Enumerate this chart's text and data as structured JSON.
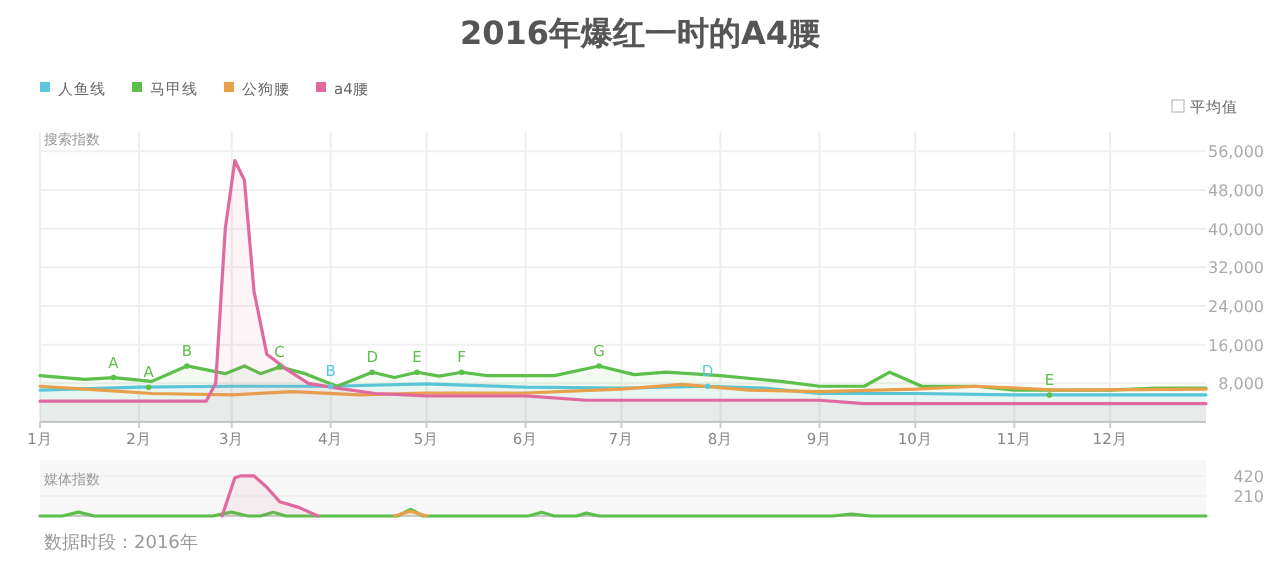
{
  "chart_data": [
    {
      "type": "area",
      "title": "2016年爆红一时的A4腰",
      "ylabel": "搜索指数",
      "legend": "top left",
      "grid": true,
      "xlim": [
        "2016-01-01",
        "2016-12-31"
      ],
      "xticks": [
        {
          "value": "2016-01-01",
          "label": "1月"
        },
        {
          "value": "2016-02-01",
          "label": "2月"
        },
        {
          "value": "2016-03-01",
          "label": "3月"
        },
        {
          "value": "2016-04-01",
          "label": "4月"
        },
        {
          "value": "2016-05-01",
          "label": "5月"
        },
        {
          "value": "2016-06-01",
          "label": "6月"
        },
        {
          "value": "2016-07-01",
          "label": "7月"
        },
        {
          "value": "2016-08-01",
          "label": "8月"
        },
        {
          "value": "2016-09-01",
          "label": "9月"
        },
        {
          "value": "2016-10-01",
          "label": "10月"
        },
        {
          "value": "2016-11-01",
          "label": "11月"
        },
        {
          "value": "2016-12-01",
          "label": "12月"
        }
      ],
      "ylim": [
        0,
        60000
      ],
      "yticks": [
        {
          "value": 8000,
          "label": "8,000"
        },
        {
          "value": 16000,
          "label": "16,000"
        },
        {
          "value": 24000,
          "label": "24,000"
        },
        {
          "value": 32000,
          "label": "32,000"
        },
        {
          "value": 40000,
          "label": "40,000"
        },
        {
          "value": 48000,
          "label": "48,000"
        },
        {
          "value": 56000,
          "label": "56,000"
        }
      ],
      "series": [
        {
          "name": "人鱼线",
          "color": "#5bc8e0",
          "x": [
            "2016-01-01",
            "2016-02-01",
            "2016-03-01",
            "2016-04-01",
            "2016-05-01",
            "2016-06-01",
            "2016-07-01",
            "2016-07-28",
            "2016-08-15",
            "2016-09-01",
            "2016-10-01",
            "2016-11-01",
            "2016-12-31"
          ],
          "values": [
            6600,
            7200,
            7400,
            7400,
            7900,
            7200,
            7000,
            7400,
            7000,
            5900,
            5900,
            5600,
            5600
          ]
        },
        {
          "name": "马甲线",
          "color": "#5cbf4a",
          "x": [
            "2016-01-01",
            "2016-01-15",
            "2016-01-24",
            "2016-02-05",
            "2016-02-16",
            "2016-02-28",
            "2016-03-05",
            "2016-03-10",
            "2016-03-16",
            "2016-03-24",
            "2016-04-03",
            "2016-04-14",
            "2016-04-21",
            "2016-04-28",
            "2016-05-05",
            "2016-05-12",
            "2016-05-20",
            "2016-06-10",
            "2016-06-24",
            "2016-07-05",
            "2016-07-15",
            "2016-08-01",
            "2016-08-20",
            "2016-09-01",
            "2016-09-15",
            "2016-09-23",
            "2016-10-03",
            "2016-10-20",
            "2016-11-01",
            "2016-12-01",
            "2016-12-15",
            "2016-12-31"
          ],
          "values": [
            9600,
            8800,
            9200,
            8400,
            11600,
            10000,
            11600,
            10000,
            11400,
            10000,
            7400,
            10300,
            9200,
            10300,
            9500,
            10300,
            9600,
            9600,
            11600,
            9800,
            10300,
            9600,
            8400,
            7400,
            7400,
            10300,
            7400,
            7400,
            6600,
            6600,
            7000,
            7000
          ]
        },
        {
          "name": "公狗腰",
          "type": "line",
          "color": "#e8a04a",
          "x": [
            "2016-01-01",
            "2016-01-20",
            "2016-02-05",
            "2016-03-01",
            "2016-03-20",
            "2016-04-10",
            "2016-05-01",
            "2016-06-01",
            "2016-07-01",
            "2016-07-20",
            "2016-08-10",
            "2016-09-01",
            "2016-10-01",
            "2016-10-20",
            "2016-11-15",
            "2016-12-31"
          ],
          "values": [
            7400,
            6600,
            5900,
            5600,
            6300,
            5600,
            6000,
            6000,
            6800,
            7800,
            6600,
            6300,
            6800,
            7400,
            6600,
            6800
          ]
        },
        {
          "name": "a4腰",
          "color": "#e06aa0",
          "x": [
            "2016-01-01",
            "2016-02-22",
            "2016-02-25",
            "2016-02-28",
            "2016-03-02",
            "2016-03-05",
            "2016-03-08",
            "2016-03-12",
            "2016-03-18",
            "2016-03-25",
            "2016-04-03",
            "2016-04-15",
            "2016-05-01",
            "2016-06-01",
            "2016-06-20",
            "2016-09-01",
            "2016-09-15",
            "2016-12-31"
          ],
          "values": [
            4300,
            4300,
            8000,
            40000,
            54100,
            50000,
            27000,
            14000,
            11000,
            8000,
            7000,
            5900,
            5400,
            5400,
            4500,
            4500,
            3800,
            3800
          ]
        }
      ],
      "annotations": [
        {
          "text": "A",
          "x": "2016-01-24",
          "y": 9200
        },
        {
          "text": "B",
          "x": "2016-02-16",
          "y": 11600
        },
        {
          "text": "C",
          "x": "2016-03-16",
          "y": 11400
        },
        {
          "text": "D",
          "x": "2016-04-14",
          "y": 10300
        },
        {
          "text": "E",
          "x": "2016-04-28",
          "y": 10300
        },
        {
          "text": "F",
          "x": "2016-05-12",
          "y": 10300
        },
        {
          "text": "G",
          "x": "2016-06-24",
          "y": 11600
        },
        {
          "text": "A",
          "x": "2016-02-04",
          "y": 7200
        },
        {
          "text": "B",
          "x": "2016-04-01",
          "y": 7400
        },
        {
          "text": "D",
          "x": "2016-07-28",
          "y": 7400
        },
        {
          "text": "E",
          "x": "2016-11-12",
          "y": 5600
        },
        "平均值"
      ]
    },
    {
      "type": "area",
      "ylabel": "媒体指数",
      "grid": true,
      "tick_labels": "y",
      "xlim": [
        "2016-01-01",
        "2016-12-31"
      ],
      "ylim": [
        0,
        460
      ],
      "yticks": [
        210,
        420
      ],
      "series": [
        {
          "color": "#5cbf4a",
          "x": [
            "2016-01-01",
            "2016-01-08",
            "2016-01-13",
            "2016-01-18",
            "2016-02-24",
            "2016-03-01",
            "2016-03-06",
            "2016-03-10",
            "2016-03-14",
            "2016-03-18",
            "2016-04-22",
            "2016-04-26",
            "2016-04-30",
            "2016-06-02",
            "2016-06-06",
            "2016-06-10",
            "2016-06-17",
            "2016-06-20",
            "2016-06-24",
            "2016-09-05",
            "2016-09-11",
            "2016-09-17",
            "2016-12-31"
          ],
          "values": [
            0,
            0,
            40,
            0,
            0,
            40,
            0,
            0,
            40,
            0,
            0,
            70,
            0,
            0,
            40,
            0,
            0,
            30,
            0,
            0,
            20,
            0,
            0
          ]
        },
        {
          "color": "#e8a04a",
          "x": [
            "2016-04-21",
            "2016-04-26",
            "2016-05-01"
          ],
          "values": [
            0,
            50,
            0
          ]
        },
        {
          "color": "#e06aa0",
          "x": [
            "2016-02-27",
            "2016-03-02",
            "2016-03-04",
            "2016-03-08",
            "2016-03-12",
            "2016-03-16",
            "2016-03-22",
            "2016-03-28"
          ],
          "values": [
            0,
            400,
            420,
            420,
            300,
            150,
            90,
            0
          ]
        }
      ],
      "annotations": [
        "数据时段：2016年"
      ]
    }
  ]
}
